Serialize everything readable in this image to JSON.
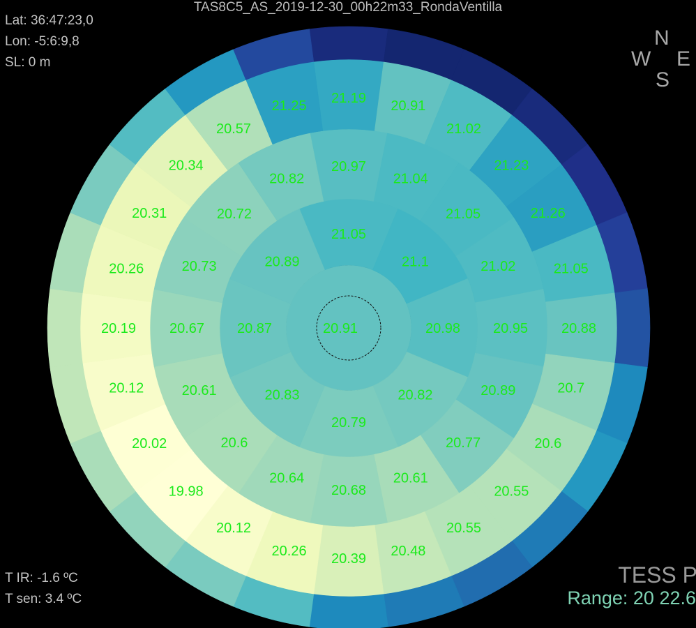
{
  "header": {
    "title": "TAS8C5_AS_2019-12-30_00h22m33_RondaVentilla"
  },
  "location": {
    "lat": "Lat: 36:47:23,0",
    "lon": "Lon: -5:6:9,8",
    "sl": "SL: 0 m"
  },
  "compass": {
    "n": "N",
    "w": "W",
    "e": "E",
    "s": "S"
  },
  "temps": {
    "ir": "T IR: -1.6 ºC",
    "sen": "T sen: 3.4 ºC"
  },
  "device": {
    "name": "TESS P",
    "range": "Range: 20  22.6"
  },
  "chart_data": {
    "type": "heatmap",
    "subtype": "polar sky brightness map",
    "title": "TAS8C5_AS_2019-12-30_00h22m33_RondaVentilla",
    "orientation": "N up, E right",
    "color_range": [
      20,
      22.6
    ],
    "colormap": "YlGnBu",
    "zenith": 20.91,
    "rings": [
      {
        "name": "ring-1",
        "labelled": true,
        "step_deg": 45,
        "values": [
          21.05,
          21.1,
          20.98,
          20.82,
          20.79,
          20.83,
          20.87,
          20.89
        ]
      },
      {
        "name": "ring-2",
        "labelled": true,
        "step_deg": 22.5,
        "values": [
          20.97,
          21.04,
          21.05,
          21.02,
          20.95,
          20.89,
          20.77,
          20.61,
          20.68,
          20.64,
          20.6,
          20.61,
          20.67,
          20.73,
          20.72,
          20.82
        ]
      },
      {
        "name": "ring-3",
        "labelled": true,
        "step_deg": 15,
        "values": [
          21.19,
          20.91,
          21.02,
          21.23,
          21.26,
          21.05,
          20.88,
          20.7,
          20.6,
          20.55,
          20.55,
          20.48,
          20.39,
          20.26,
          20.12,
          19.98,
          20.02,
          20.12,
          20.19,
          20.26,
          20.31,
          20.34,
          20.57,
          21.25
        ]
      },
      {
        "name": "ring-outer",
        "labelled": false,
        "step_deg": 15,
        "values": [
          22.3,
          22.4,
          22.4,
          22.3,
          22.2,
          22.0,
          21.8,
          21.4,
          21.3,
          21.5,
          21.6,
          21.5,
          21.4,
          21.0,
          20.8,
          20.7,
          20.6,
          20.5,
          20.5,
          20.6,
          20.8,
          21.0,
          21.3,
          21.9
        ]
      }
    ]
  }
}
